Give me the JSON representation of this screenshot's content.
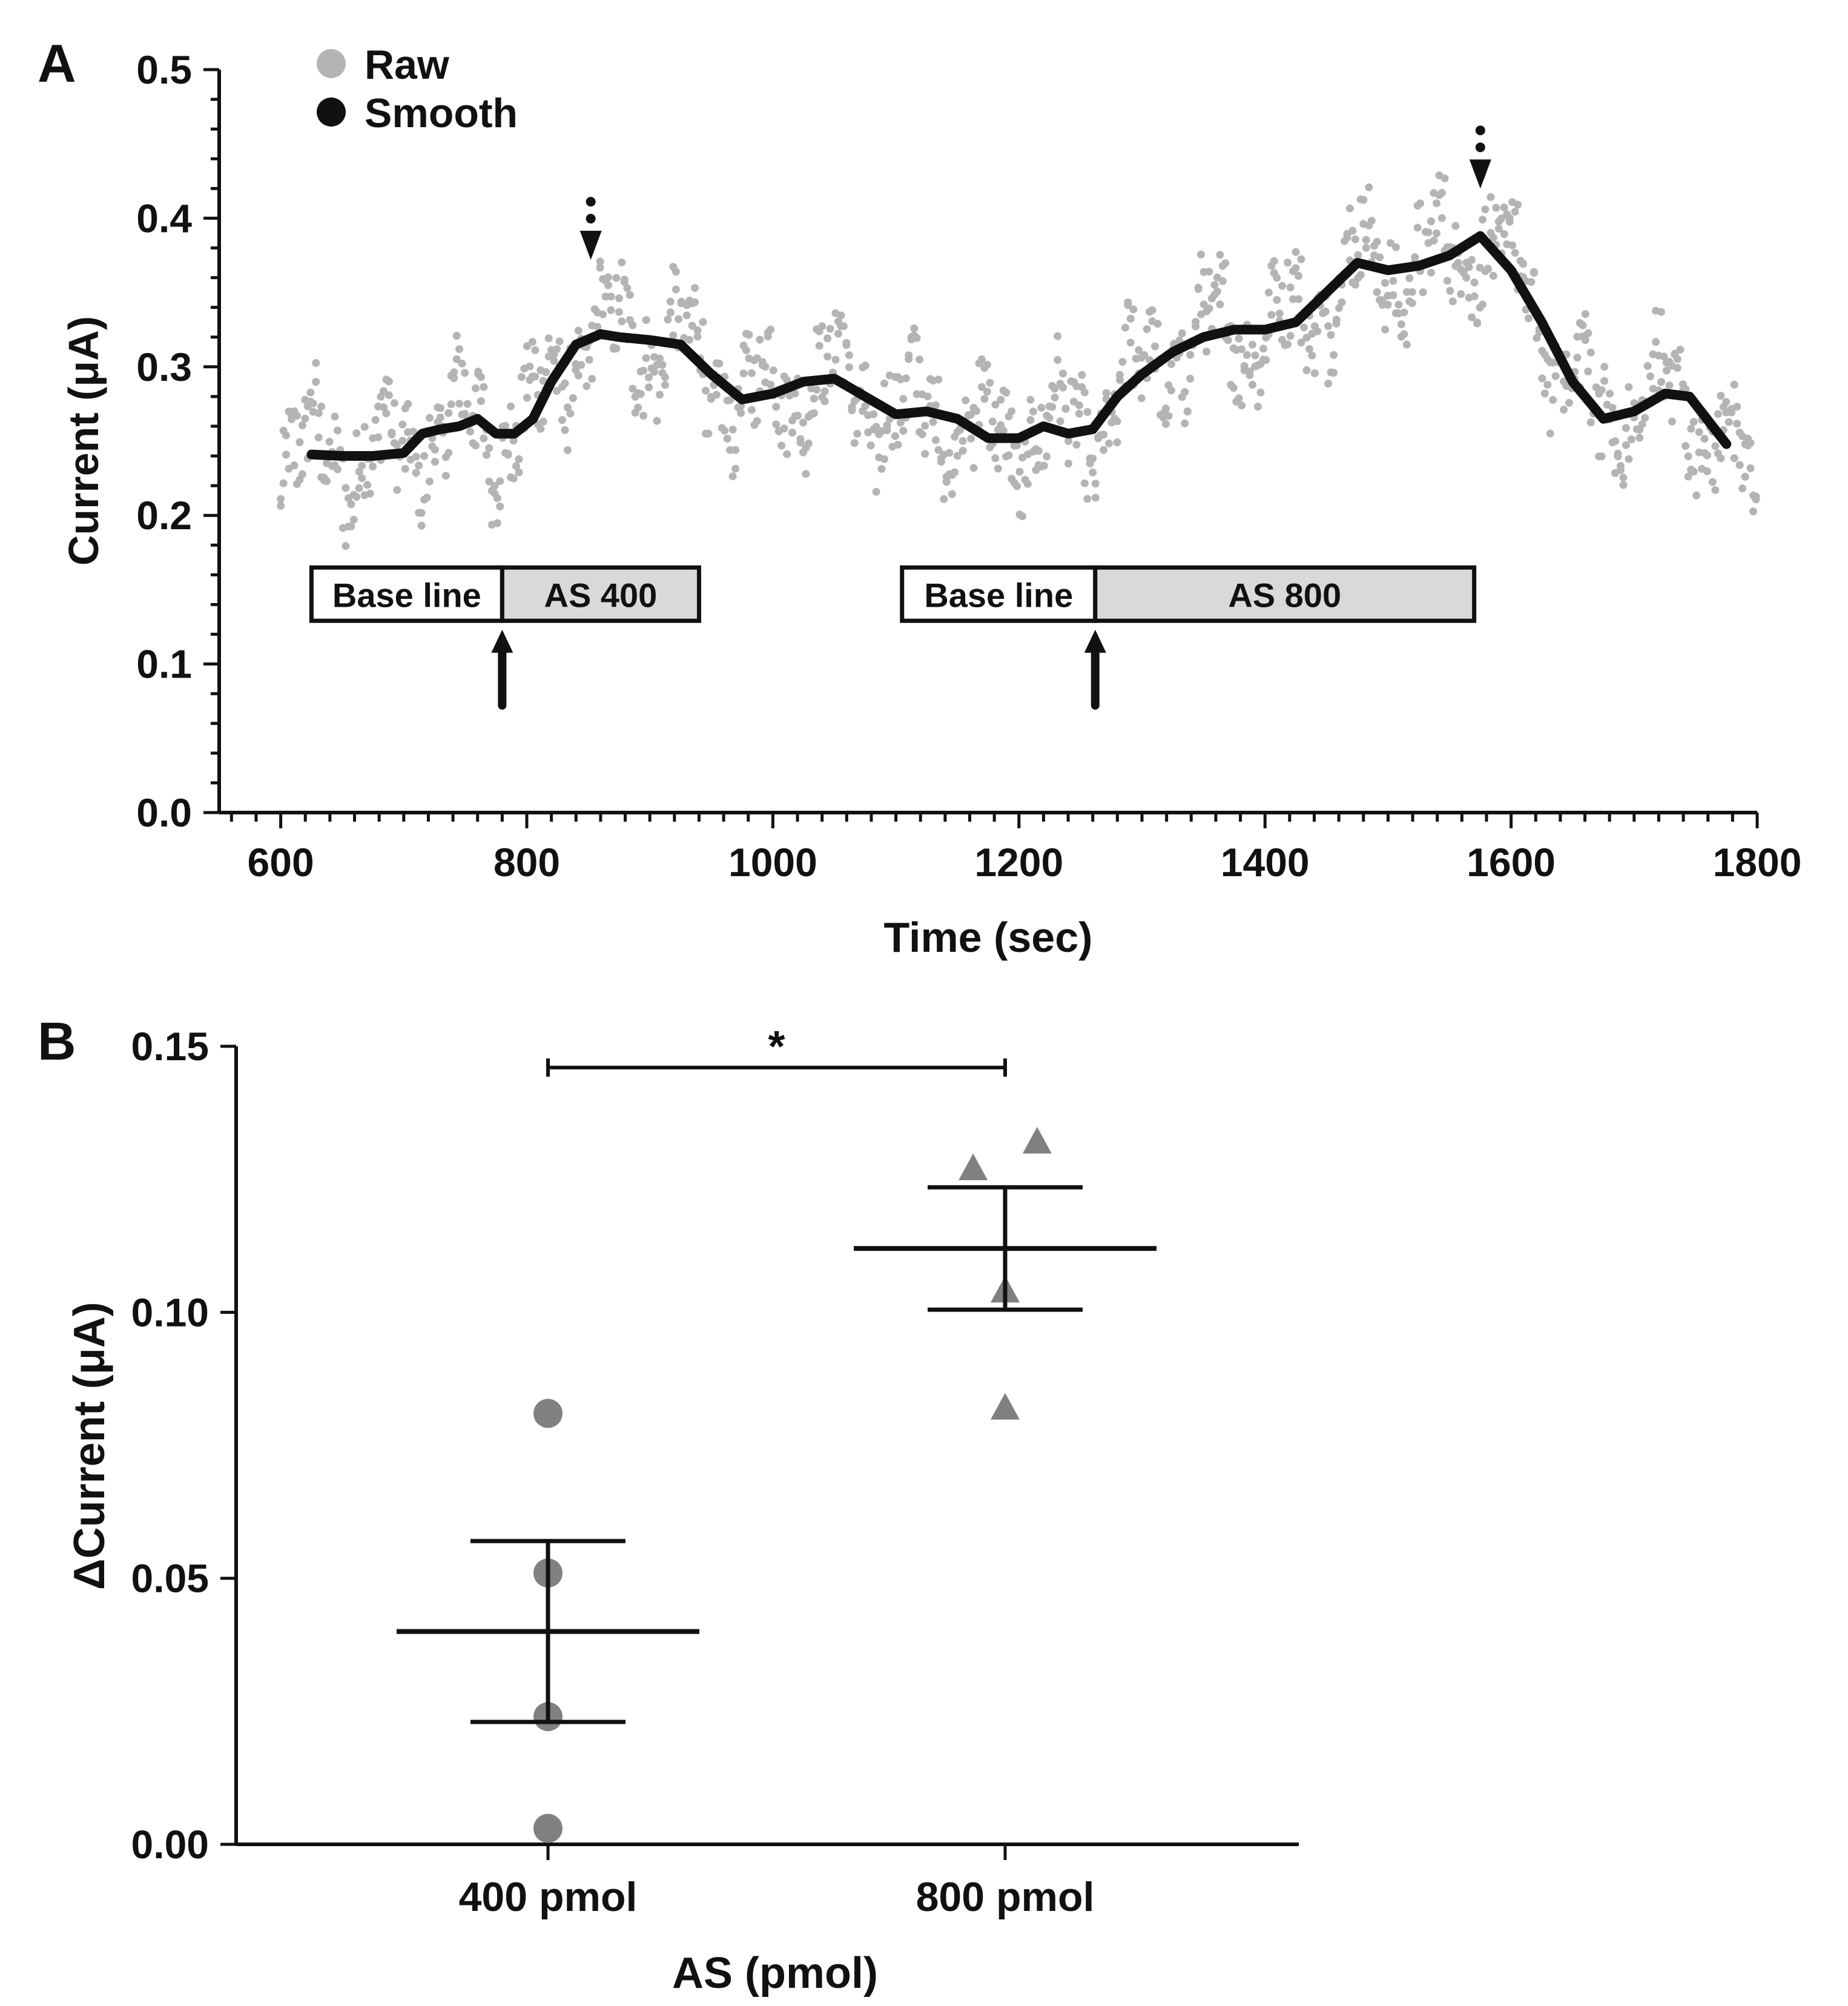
{
  "chart_data": [
    {
      "panel": "A",
      "type": "line",
      "xlabel": "Time (sec)",
      "ylabel": "Current (μA)",
      "xlim": [
        550,
        1800
      ],
      "ylim": [
        0.0,
        0.5
      ],
      "x_ticks": [
        600,
        800,
        1000,
        1200,
        1400,
        1600,
        1800
      ],
      "x_tick_labels": [
        "600",
        "800",
        "1000",
        "1200",
        "1400",
        "1600",
        "1800"
      ],
      "y_ticks": [
        0.0,
        0.1,
        0.2,
        0.3,
        0.4,
        0.5
      ],
      "y_tick_labels": [
        "0.0",
        "0.1",
        "0.2",
        "0.3",
        "0.4",
        "0.5"
      ],
      "legend": {
        "placement": "top-left",
        "entries": [
          {
            "label": "Raw",
            "color": "#b4b4b4"
          },
          {
            "label": "Smooth",
            "color": "#111111"
          }
        ]
      },
      "series": [
        {
          "name": "Smooth",
          "color": "#111111",
          "x": [
            625,
            650,
            675,
            700,
            715,
            730,
            745,
            760,
            775,
            790,
            805,
            820,
            840,
            860,
            875,
            900,
            925,
            950,
            975,
            1000,
            1025,
            1050,
            1075,
            1100,
            1125,
            1150,
            1175,
            1200,
            1220,
            1240,
            1260,
            1280,
            1300,
            1325,
            1350,
            1375,
            1400,
            1425,
            1450,
            1475,
            1500,
            1525,
            1550,
            1575,
            1600,
            1625,
            1650,
            1675,
            1700,
            1725,
            1745,
            1775
          ],
          "y": [
            0.241,
            0.24,
            0.24,
            0.242,
            0.255,
            0.258,
            0.26,
            0.265,
            0.255,
            0.255,
            0.265,
            0.29,
            0.315,
            0.322,
            0.32,
            0.318,
            0.315,
            0.295,
            0.278,
            0.282,
            0.29,
            0.292,
            0.28,
            0.268,
            0.27,
            0.265,
            0.252,
            0.252,
            0.26,
            0.255,
            0.258,
            0.28,
            0.295,
            0.31,
            0.32,
            0.325,
            0.325,
            0.33,
            0.35,
            0.37,
            0.365,
            0.368,
            0.375,
            0.388,
            0.365,
            0.33,
            0.29,
            0.265,
            0.27,
            0.282,
            0.28,
            0.248
          ]
        },
        {
          "name": "Raw",
          "color": "#b4b4b4",
          "description_range": "scattered around Smooth with amplitude about ±0.04",
          "range_x": [
            600,
            1800
          ],
          "range_y": [
            0.165,
            0.455
          ]
        }
      ],
      "annotations": {
        "epochs": [
          {
            "label_left": "Base line",
            "label_right": "AS 400",
            "x_start": 625,
            "x_split": 780,
            "x_end": 940,
            "y": 0.147
          },
          {
            "label_left": "Base line",
            "label_right": "AS 800",
            "x_start": 1105,
            "x_split": 1262,
            "x_end": 1570,
            "y": 0.147
          }
        ],
        "injection_arrows_x": [
          780,
          1262
        ],
        "peak_markers_x": [
          852,
          1575
        ],
        "peak_marker_y": [
          0.372,
          0.42
        ]
      }
    },
    {
      "panel": "B",
      "type": "scatter",
      "xlabel": "AS (pmol)",
      "ylabel": "ΔCurrent (μA)",
      "ylim": [
        0.0,
        0.15
      ],
      "y_ticks": [
        0.0,
        0.05,
        0.1,
        0.15
      ],
      "y_tick_labels": [
        "0.00",
        "0.05",
        "0.10",
        "0.15"
      ],
      "categories": [
        "400 pmol",
        "800 pmol"
      ],
      "series": [
        {
          "name": "400 pmol",
          "marker": "circle",
          "color": "#808080",
          "values": [
            0.081,
            0.051,
            0.024,
            0.003
          ],
          "jitter": [
            0,
            0,
            0,
            0
          ],
          "mean": 0.04,
          "sem": 0.017
        },
        {
          "name": "800 pmol",
          "marker": "triangle",
          "color": "#808080",
          "values": [
            0.127,
            0.132,
            0.104,
            0.082
          ],
          "jitter": [
            -0.07,
            0.07,
            0.0,
            0.0
          ],
          "mean": 0.112,
          "sem": 0.0115
        }
      ],
      "significance": {
        "label": "*",
        "between": [
          "400 pmol",
          "800 pmol"
        ],
        "y": 0.146
      }
    }
  ],
  "panel_labels": {
    "a": "A",
    "b": "B"
  }
}
